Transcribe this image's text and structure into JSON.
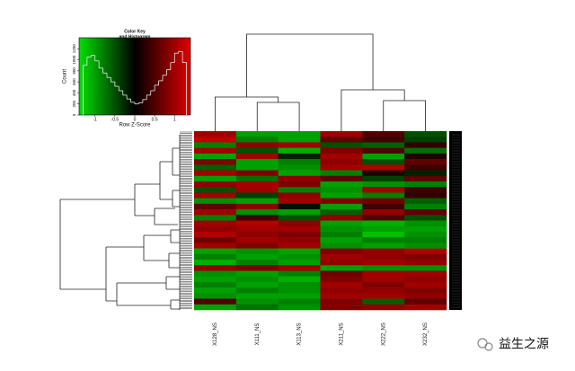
{
  "chart_data": {
    "type": "heatmap",
    "columns": [
      "X128_NS",
      "X111_NS",
      "X113_NS",
      "X211_NS",
      "X222_NS",
      "X232_NS"
    ],
    "colors": [
      "#00e000",
      "#000000",
      "#e00000"
    ],
    "values": [
      [
        1,
        -1,
        -1,
        1,
        0.5,
        -0.5
      ],
      [
        1.2,
        -0.8,
        -1,
        0.6,
        0.4,
        -0.4
      ],
      [
        -0.8,
        0.9,
        1,
        -0.5,
        -0.6,
        0.3
      ],
      [
        1,
        -0.5,
        -1.1,
        0.8,
        0.5,
        -0.7
      ],
      [
        -1,
        1,
        -0.2,
        1,
        -1,
        0.2
      ],
      [
        0.8,
        -1,
        -0.8,
        0.9,
        -0.5,
        0.6
      ],
      [
        -0.6,
        -1,
        -0.9,
        1,
        1.1,
        0.4
      ],
      [
        1,
        0.8,
        -1,
        -0.8,
        0.2,
        -0.2
      ],
      [
        -1,
        -0.7,
        0.9,
        0.6,
        -0.4,
        0.6
      ],
      [
        0.9,
        1,
        0.8,
        -1,
        -0.9,
        -0.8
      ],
      [
        -0.5,
        1,
        -0.8,
        -0.9,
        1,
        0.4
      ],
      [
        1,
        -0.4,
        0.9,
        -1,
        -0.8,
        0.3
      ],
      [
        -0.9,
        -1,
        1,
        0.8,
        0.7,
        -0.6
      ],
      [
        0.6,
        0.9,
        -0.1,
        -1,
        0.4,
        -0.8
      ],
      [
        1,
        -0.9,
        -1,
        -0.6,
        0.9,
        0.6
      ],
      [
        -0.8,
        0.4,
        -0.5,
        0.9,
        0.5,
        -0.5
      ],
      [
        1,
        1.1,
        0.9,
        -1,
        -1.1,
        -0.9
      ],
      [
        0.9,
        1,
        1,
        -0.9,
        -1,
        -1
      ],
      [
        1.1,
        0.9,
        0.8,
        -0.8,
        -1.2,
        -0.9
      ],
      [
        0.7,
        1,
        0.9,
        -1,
        -0.8,
        -0.8
      ],
      [
        1,
        0.8,
        1,
        -0.9,
        -1,
        -0.9
      ],
      [
        -1,
        -0.9,
        -1,
        0.8,
        0.9,
        1.1
      ],
      [
        -0.8,
        -1,
        -0.9,
        1,
        0.9,
        0.8
      ],
      [
        -1.1,
        -0.8,
        -1,
        0.9,
        1,
        0.9
      ],
      [
        0.9,
        0.8,
        1,
        -1,
        -0.9,
        -0.9
      ],
      [
        -0.9,
        -1,
        -0.8,
        0.7,
        1,
        1
      ],
      [
        -1,
        -0.9,
        -1.1,
        0.8,
        1,
        0.9
      ],
      [
        -0.8,
        -1,
        -0.9,
        1,
        0.8,
        1
      ],
      [
        -1,
        -0.8,
        -0.9,
        0.9,
        0.9,
        0.8
      ],
      [
        -0.9,
        -1,
        -1,
        1,
        1,
        0.9
      ],
      [
        0.5,
        -0.9,
        -0.8,
        0.8,
        -0.6,
        0.6
      ],
      [
        -1,
        -0.7,
        -0.9,
        0.8,
        0.9,
        1
      ]
    ],
    "col_dendrogram": {
      "merge": [
        [
          -2,
          -3
        ],
        [
          -1,
          1
        ],
        [
          -5,
          -6
        ],
        [
          -4,
          3
        ],
        [
          2,
          4
        ]
      ],
      "height": [
        32,
        38,
        34,
        46,
        108
      ]
    },
    "color_key": {
      "type": "histogram",
      "title_lines": [
        "Color Key",
        "and Histogram"
      ],
      "xlabel": "Row Z-Score",
      "ylabel": "Count",
      "bins": [
        -1.3,
        -1.2,
        -1.1,
        -1.0,
        -0.9,
        -0.8,
        -0.7,
        -0.6,
        -0.5,
        -0.4,
        -0.3,
        -0.2,
        -0.1,
        0,
        0.1,
        0.2,
        0.3,
        0.4,
        0.5,
        0.6,
        0.7,
        0.8,
        0.9,
        1.0,
        1.1,
        1.2,
        1.3
      ],
      "counts": [
        900,
        1050,
        1080,
        980,
        850,
        760,
        680,
        600,
        520,
        440,
        360,
        290,
        230,
        200,
        220,
        280,
        360,
        440,
        540,
        620,
        720,
        820,
        950,
        1120,
        1150,
        950
      ],
      "xlim": [
        -1.4,
        1.4
      ],
      "ylim": [
        0,
        1400
      ],
      "xticks": [
        -1,
        -0.5,
        0,
        0.5,
        1
      ],
      "yticks": [
        0,
        200,
        400,
        600,
        800,
        1000,
        1200
      ]
    }
  },
  "watermark": "益生之源"
}
